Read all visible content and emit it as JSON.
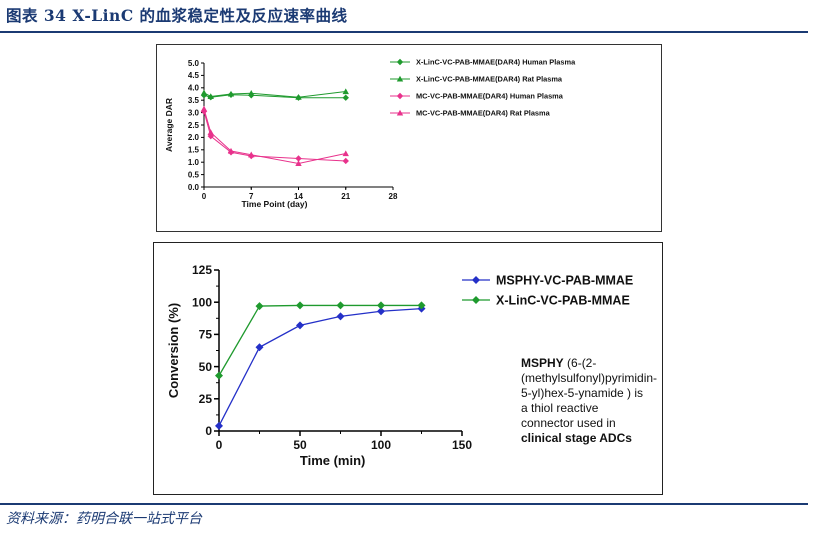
{
  "header": {
    "title": "图表 34   X-LinC 的血浆稳定性及反应速率曲线"
  },
  "footer": {
    "source": "资料来源：药明合联一站式平台"
  },
  "colors": {
    "brand_navy": "#1b3a73",
    "green": "#1f9a2e",
    "pink": "#e8328c",
    "blue": "#2430c8"
  },
  "chart_data": [
    {
      "type": "line",
      "xlabel": "Time Point (day)",
      "ylabel": "Average DAR",
      "xlim": [
        0,
        28
      ],
      "ylim": [
        0,
        5
      ],
      "xticks": [
        "0",
        "7",
        "14",
        "21",
        "28"
      ],
      "yticks": [
        "0.0",
        "0.5",
        "1.0",
        "1.5",
        "2.0",
        "2.5",
        "3.0",
        "3.5",
        "4.0",
        "4.5",
        "5.0"
      ],
      "legend_position": "right",
      "series": [
        {
          "name": "X-LinC-VC-PAB-MMAE(DAR4) Human Plasma",
          "color": "#1f9a2e",
          "marker": "diamond",
          "x": [
            0,
            1,
            4,
            7,
            14,
            21
          ],
          "y": [
            3.7,
            3.62,
            3.72,
            3.7,
            3.6,
            3.6
          ]
        },
        {
          "name": "X-LinC-VC-PAB-MMAE(DAR4) Rat Plasma",
          "color": "#1f9a2e",
          "marker": "triangle",
          "x": [
            0,
            1,
            4,
            7,
            14,
            21
          ],
          "y": [
            3.8,
            3.65,
            3.75,
            3.78,
            3.62,
            3.85
          ]
        },
        {
          "name": "MC-VC-PAB-MMAE(DAR4) Human Plasma",
          "color": "#e8328c",
          "marker": "diamond",
          "x": [
            0,
            1,
            4,
            7,
            14,
            21
          ],
          "y": [
            3.05,
            2.05,
            1.4,
            1.25,
            1.15,
            1.05
          ]
        },
        {
          "name": "MC-VC-PAB-MMAE(DAR4) Rat Plasma",
          "color": "#e8328c",
          "marker": "triangle",
          "x": [
            0,
            1,
            4,
            7,
            14,
            21
          ],
          "y": [
            3.15,
            2.2,
            1.45,
            1.3,
            0.95,
            1.35
          ]
        }
      ]
    },
    {
      "type": "line",
      "xlabel": "Time (min)",
      "ylabel": "Conversion (%)",
      "xlim": [
        0,
        150
      ],
      "ylim": [
        0,
        125
      ],
      "xticks": [
        "0",
        "50",
        "100",
        "150"
      ],
      "yticks": [
        "0",
        "25",
        "50",
        "75",
        "100",
        "125"
      ],
      "legend_position": "top-right",
      "series": [
        {
          "name": "MSPHY-VC-PAB-MMAE",
          "color": "#2430c8",
          "marker": "diamond",
          "x": [
            0,
            25,
            50,
            75,
            100,
            125
          ],
          "y": [
            4,
            65,
            82,
            89,
            93,
            95
          ]
        },
        {
          "name": "X-LinC-VC-PAB-MMAE",
          "color": "#1f9a2e",
          "marker": "diamond",
          "x": [
            0,
            25,
            50,
            75,
            100,
            125
          ],
          "y": [
            43,
            97,
            97.5,
            97.5,
            97.5,
            97.5
          ]
        }
      ],
      "annotation": {
        "part1_bold": "MSPHY",
        "part2": " (6-(2-(methylsulfonyl)pyrimidin-5-yl)hex-5-ynamide ) is a thiol reactive connector used in ",
        "part3_bold": "clinical stage ADCs"
      }
    }
  ]
}
